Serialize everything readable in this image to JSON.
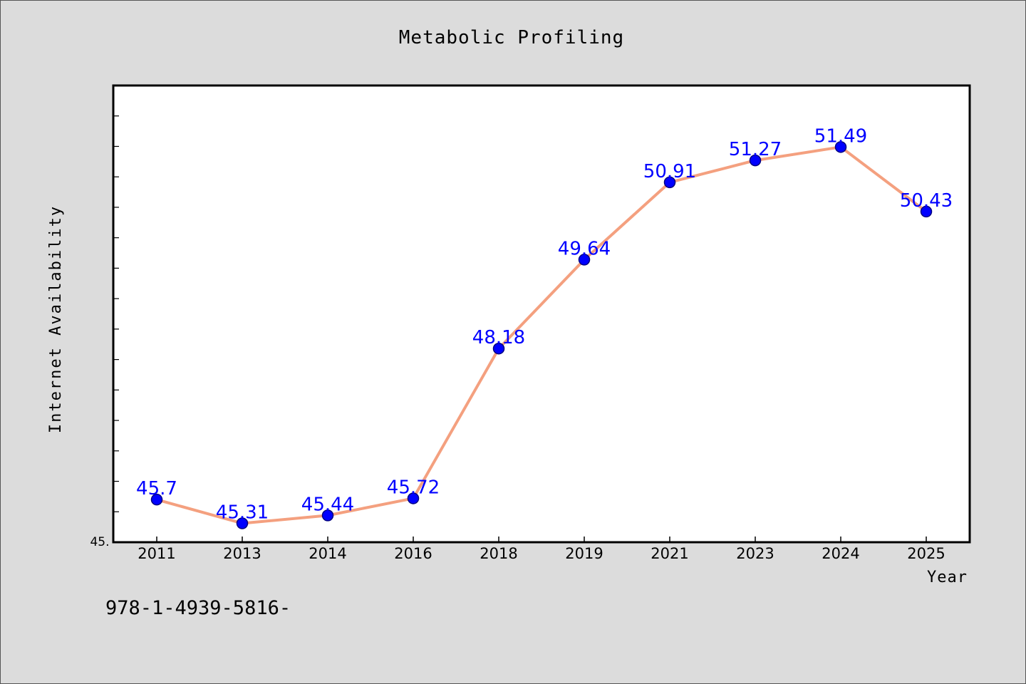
{
  "chart_data": {
    "type": "line",
    "title": "Metabolic Profiling",
    "xlabel": "Year",
    "ylabel": "Internet Availability",
    "categories": [
      "2011",
      "2013",
      "2014",
      "2016",
      "2018",
      "2019",
      "2021",
      "2023",
      "2024",
      "2025"
    ],
    "series": [
      {
        "values": [
          45.7,
          45.31,
          45.44,
          45.72,
          48.18,
          49.64,
          50.91,
          51.27,
          51.49,
          50.43
        ],
        "labels": [
          "45.7",
          "45.31",
          "45.44",
          "45.72",
          "48.18",
          "49.64",
          "50.91",
          "51.27",
          "51.49",
          "50.43"
        ]
      }
    ],
    "ylim": [
      45.0,
      52.5
    ],
    "y_tick_label": "45.",
    "grid": false,
    "legend": "none",
    "colors": {
      "line": "#f4a07f",
      "marker": "#0000ff",
      "marker_edge": "#000080",
      "label": "#0000ff"
    }
  },
  "footer_text": "978-1-4939-5816-"
}
